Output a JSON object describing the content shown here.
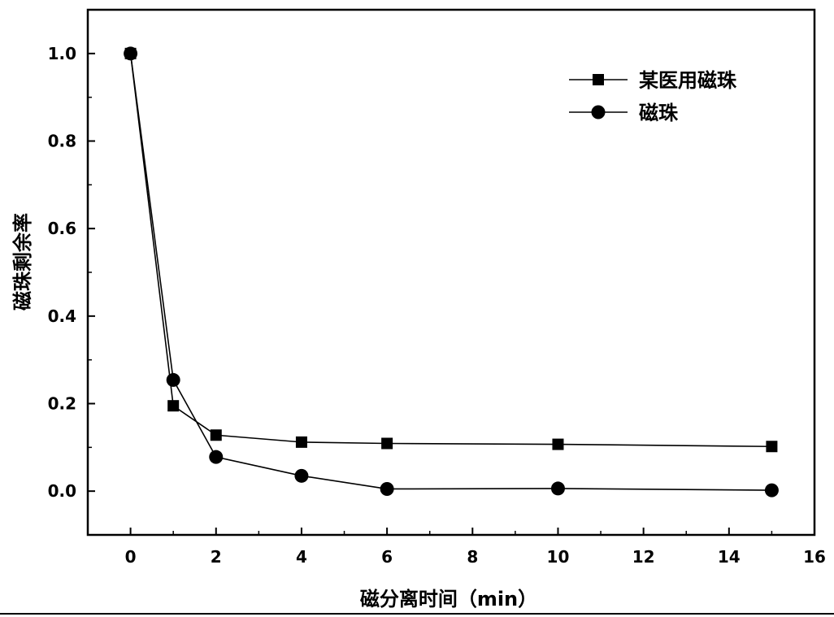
{
  "chart_data": {
    "type": "line",
    "title": "",
    "xlabel": "磁分离时间（min）",
    "ylabel": "磁珠剩余率",
    "xlim": [
      -1,
      16
    ],
    "ylim": [
      -0.1,
      1.1
    ],
    "xticks": [
      0,
      2,
      4,
      6,
      8,
      10,
      12,
      14,
      16
    ],
    "xtick_labels": [
      "0",
      "2",
      "4",
      "6",
      "8",
      "10",
      "12",
      "14",
      "16"
    ],
    "yticks": [
      0.0,
      0.2,
      0.4,
      0.6,
      0.8,
      1.0
    ],
    "ytick_labels": [
      "0.0",
      "0.2",
      "0.4",
      "0.6",
      "0.8",
      "1.0"
    ],
    "grid": false,
    "legend_position": "top-right",
    "series": [
      {
        "name": "某医用磁珠",
        "marker": "square",
        "color": "#000000",
        "x": [
          0,
          1,
          2,
          4,
          6,
          10,
          15
        ],
        "y": [
          1.0,
          0.195,
          0.128,
          0.112,
          0.109,
          0.107,
          0.102
        ]
      },
      {
        "name": "磁珠",
        "marker": "circle",
        "color": "#000000",
        "x": [
          0,
          1,
          2,
          4,
          6,
          10,
          15
        ],
        "y": [
          1.0,
          0.254,
          0.078,
          0.035,
          0.005,
          0.006,
          0.002
        ]
      }
    ]
  }
}
